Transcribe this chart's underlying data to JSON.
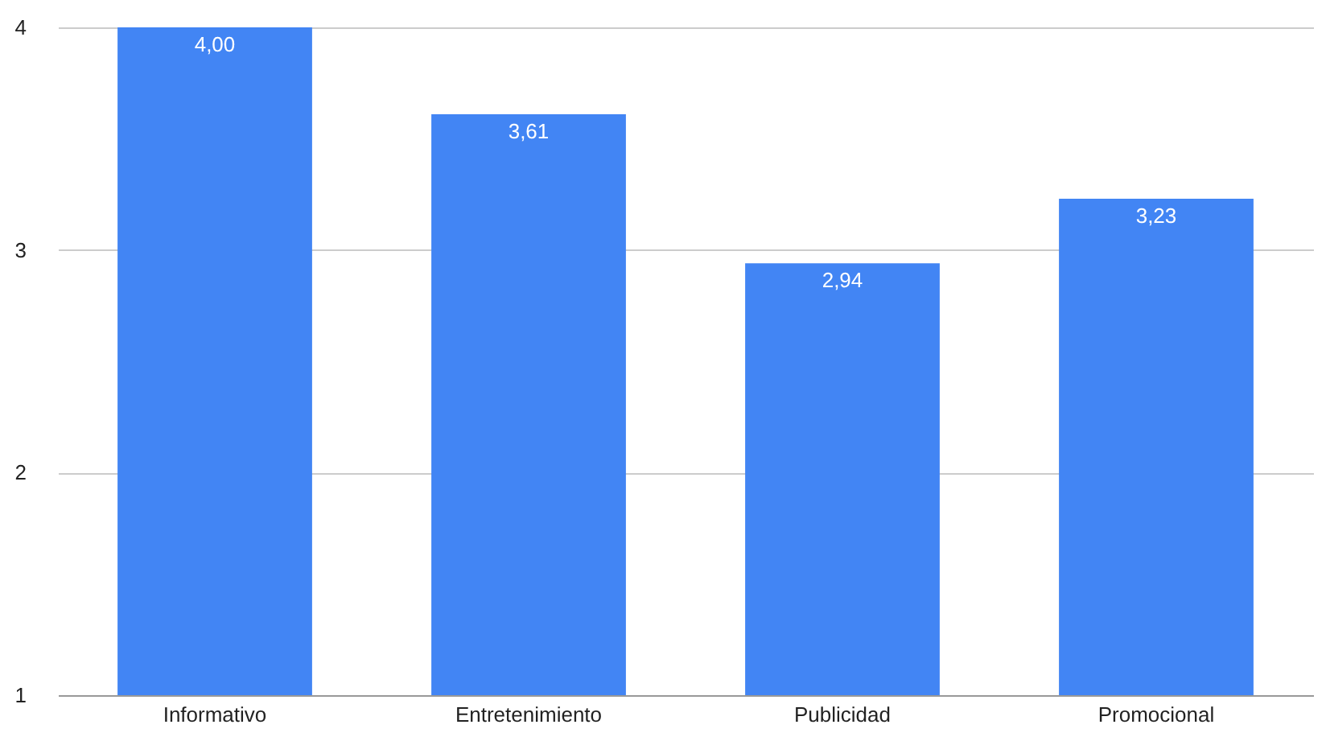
{
  "chart_data": {
    "type": "bar",
    "categories": [
      "Informativo",
      "Entretenimiento",
      "Publicidad",
      "Promocional"
    ],
    "values": [
      4.0,
      3.61,
      2.94,
      3.23
    ],
    "value_labels": [
      "4,00",
      "3,61",
      "2,94",
      "3,23"
    ],
    "color": "#4285f4",
    "ylim": [
      1,
      4
    ],
    "yticks": [
      1,
      2,
      3,
      4
    ],
    "grid": "y"
  }
}
